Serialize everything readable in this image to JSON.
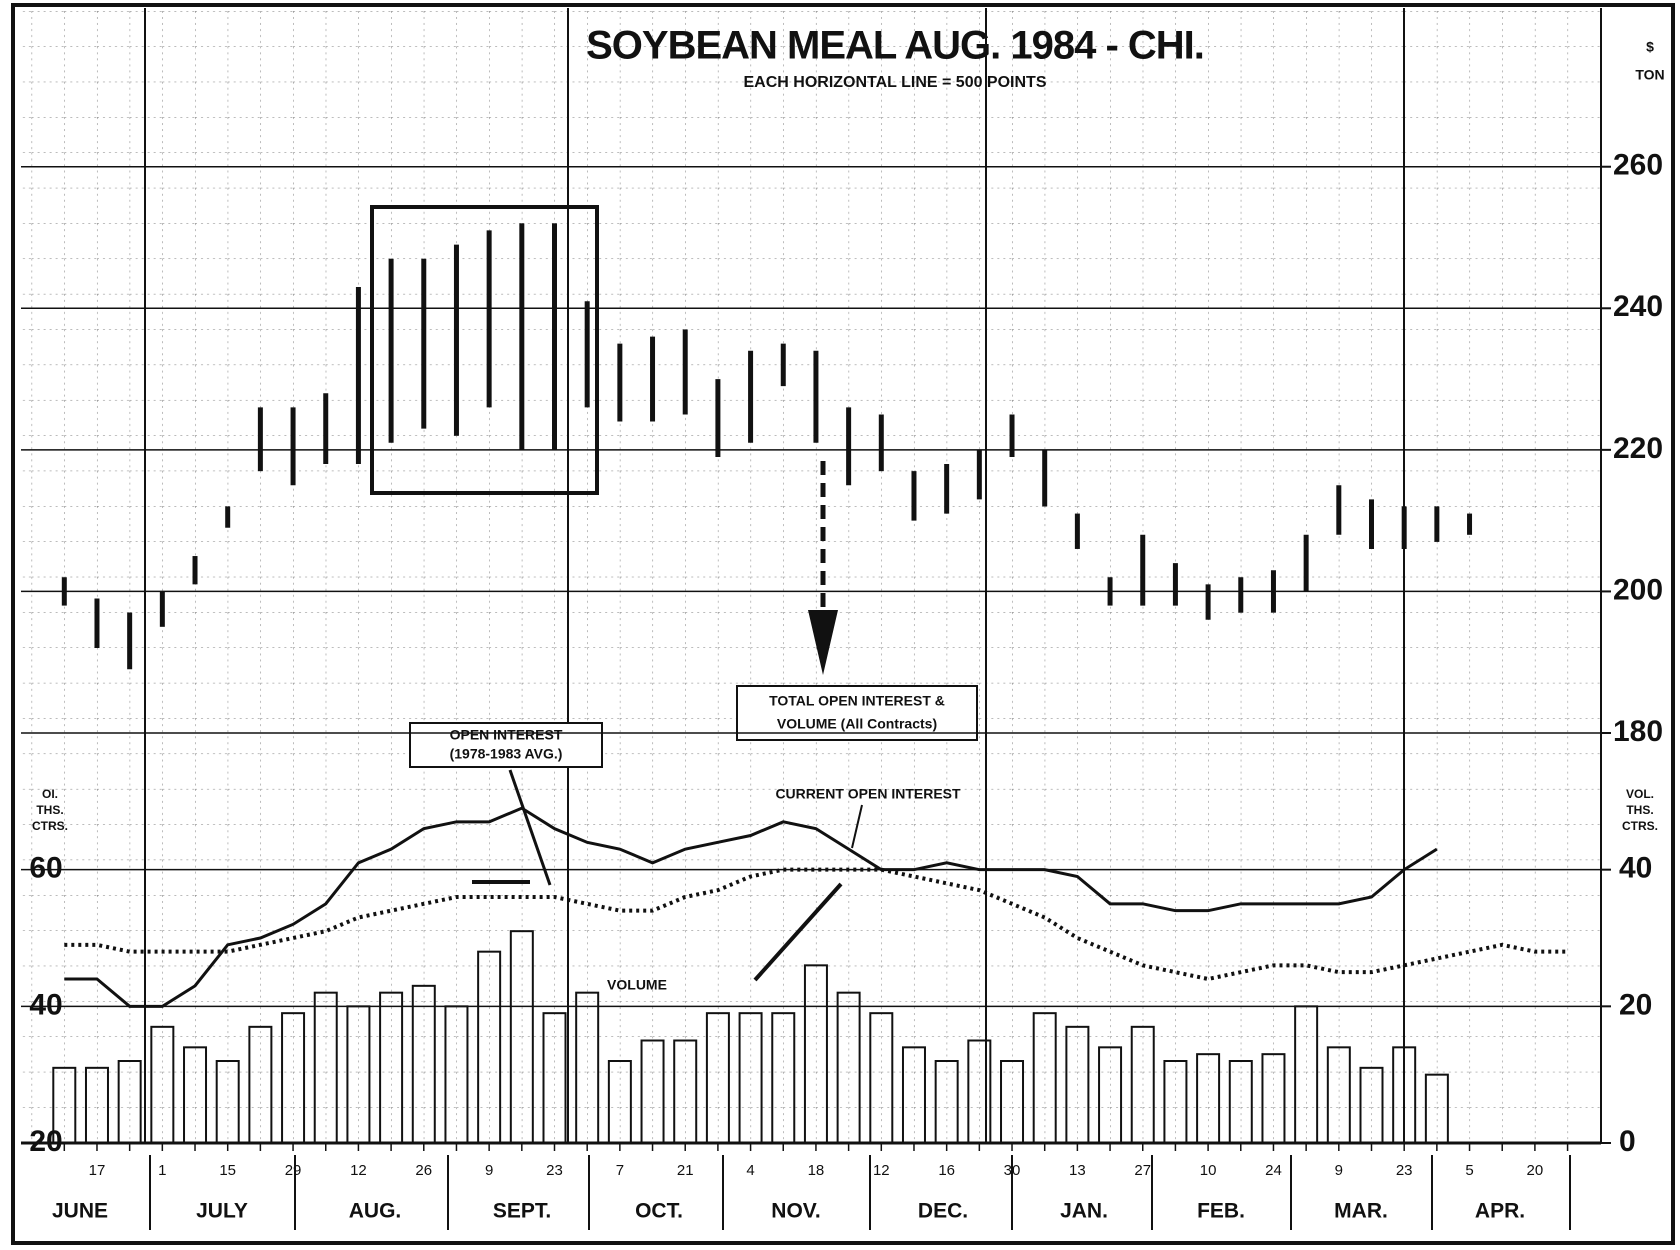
{
  "chart_data": {
    "type": "futures",
    "title": "SOYBEAN MEAL  AUG. 1984 - CHI.",
    "subtitle": "EACH HORIZONTAL LINE = 500 POINTS",
    "price_unit": [
      "$",
      "TON"
    ],
    "oi_unit": [
      "OI.",
      "THS.",
      "CTRS."
    ],
    "volume_unit": [
      "VOL.",
      "THS.",
      "CTRS."
    ],
    "categories": [
      null,
      "17",
      null,
      "1",
      null,
      "15",
      null,
      "29",
      null,
      "12",
      null,
      "26",
      null,
      "9",
      null,
      "23",
      null,
      "7",
      null,
      "21",
      null,
      "4",
      null,
      "18",
      null,
      "12",
      null,
      "16",
      null,
      "30",
      null,
      "13",
      null,
      "27",
      null,
      "10",
      null,
      "24",
      null,
      "9",
      null,
      "23",
      null,
      "5",
      null,
      "20",
      null
    ],
    "months": [
      "JUNE",
      "JULY",
      "AUG.",
      "SEPT.",
      "OCT.",
      "NOV.",
      "DEC.",
      "JAN.",
      "FEB.",
      "MAR.",
      "APR."
    ],
    "ylim": [
      180,
      282
    ],
    "yticks": [
      180,
      200,
      220,
      240,
      260
    ],
    "oi_lim": [
      20,
      80
    ],
    "oi_ticks": [
      20,
      40,
      60
    ],
    "volume_lim": [
      0,
      60
    ],
    "volume_ticks": [
      0,
      20,
      40
    ],
    "high": [
      202,
      199,
      197,
      200,
      205,
      212,
      226,
      226,
      228,
      243,
      247,
      247,
      249,
      251,
      252,
      252,
      241,
      235,
      236,
      237,
      230,
      234,
      235,
      234,
      226,
      225,
      217,
      218,
      220,
      225,
      220,
      211,
      202,
      208,
      204,
      201,
      202,
      203,
      208,
      215,
      213,
      212,
      212,
      211,
      null,
      null,
      null
    ],
    "low": [
      198,
      192,
      189,
      195,
      201,
      209,
      217,
      215,
      218,
      218,
      221,
      223,
      222,
      226,
      220,
      220,
      226,
      224,
      224,
      225,
      219,
      221,
      229,
      221,
      215,
      217,
      210,
      211,
      213,
      219,
      212,
      206,
      198,
      198,
      198,
      196,
      197,
      197,
      200,
      208,
      206,
      206,
      207,
      208,
      null,
      null,
      null
    ],
    "open_interest": [
      44,
      44,
      40,
      40,
      43,
      49,
      50,
      52,
      55,
      61,
      63,
      66,
      67,
      67,
      69,
      66,
      64,
      63,
      61,
      63,
      64,
      65,
      67,
      66,
      63,
      60,
      60,
      61,
      60,
      60,
      60,
      59,
      55,
      55,
      54,
      54,
      55,
      55,
      55,
      55,
      56,
      60,
      63,
      null,
      null,
      null,
      null
    ],
    "open_interest_avg": [
      49,
      49,
      48,
      48,
      48,
      48,
      49,
      50,
      51,
      53,
      54,
      55,
      56,
      56,
      56,
      56,
      55,
      54,
      54,
      56,
      57,
      59,
      60,
      60,
      60,
      60,
      59,
      58,
      57,
      55,
      53,
      50,
      48,
      46,
      45,
      44,
      45,
      46,
      46,
      45,
      45,
      46,
      47,
      48,
      49,
      48,
      48
    ],
    "volume": [
      11,
      11,
      12,
      17,
      14,
      12,
      17,
      19,
      22,
      20,
      22,
      23,
      20,
      28,
      31,
      19,
      22,
      12,
      15,
      15,
      19,
      19,
      19,
      26,
      22,
      19,
      14,
      12,
      15,
      12,
      19,
      17,
      14,
      17,
      12,
      13,
      12,
      13,
      20,
      14,
      11,
      14,
      10,
      null,
      null,
      null,
      null
    ],
    "annotations": {
      "avg_label": [
        "OPEN INTEREST",
        "(1978-1983 AVG.)"
      ],
      "total_label": [
        "TOTAL OPEN INTEREST &",
        "VOLUME (All Contracts)"
      ],
      "current_label": "CURRENT OPEN INTEREST",
      "volume_label": "VOLUME"
    }
  }
}
